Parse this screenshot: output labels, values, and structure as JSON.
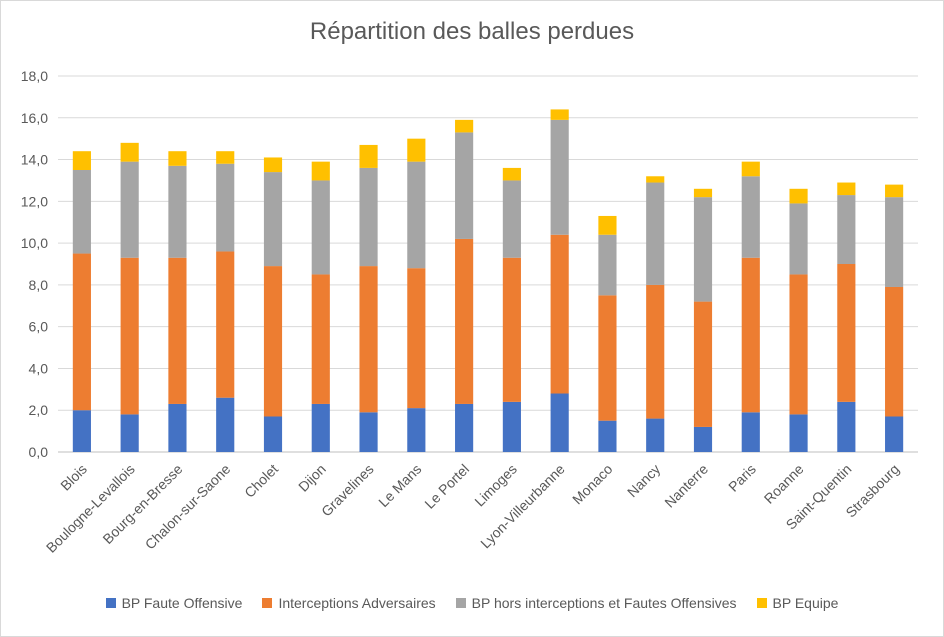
{
  "chart_data": {
    "type": "bar",
    "stacked": true,
    "title": "Répartition des balles perdues",
    "categories": [
      "Blois",
      "Boulogne-Levallois",
      "Bourg-en-Bresse",
      "Chalon-sur-Saone",
      "Cholet",
      "Dijon",
      "Gravelines",
      "Le Mans",
      "Le Portel",
      "Limoges",
      "Lyon-Villeurbanne",
      "Monaco",
      "Nancy",
      "Nanterre",
      "Paris",
      "Roanne",
      "Saint-Quentin",
      "Strasbourg"
    ],
    "series": [
      {
        "name": "BP Faute Offensive",
        "color": "#4472c4",
        "values": [
          2.0,
          1.8,
          2.3,
          2.6,
          1.7,
          2.3,
          1.9,
          2.1,
          2.3,
          2.4,
          2.8,
          1.5,
          1.6,
          1.2,
          1.9,
          1.8,
          2.4,
          1.7
        ]
      },
      {
        "name": "Interceptions Adversaires",
        "color": "#ed7d31",
        "values": [
          7.5,
          7.5,
          7.0,
          7.0,
          7.2,
          6.2,
          7.0,
          6.7,
          7.9,
          6.9,
          7.6,
          6.0,
          6.4,
          6.0,
          7.4,
          6.7,
          6.6,
          6.2
        ]
      },
      {
        "name": "BP hors interceptions et Fautes Offensives",
        "color": "#a5a5a5",
        "values": [
          4.0,
          4.6,
          4.4,
          4.2,
          4.5,
          4.5,
          4.7,
          5.1,
          5.1,
          3.7,
          5.5,
          2.9,
          4.9,
          5.0,
          3.9,
          3.4,
          3.3,
          4.3
        ]
      },
      {
        "name": "BP Equipe",
        "color": "#ffc000",
        "values": [
          0.9,
          0.9,
          0.7,
          0.6,
          0.7,
          0.9,
          1.1,
          1.1,
          0.6,
          0.6,
          0.5,
          0.9,
          0.3,
          0.4,
          0.7,
          0.7,
          0.6,
          0.6
        ]
      }
    ],
    "ylim": [
      0,
      18
    ],
    "yticks": [
      "0,0",
      "2,0",
      "4,0",
      "6,0",
      "8,0",
      "10,0",
      "12,0",
      "14,0",
      "16,0",
      "18,0"
    ],
    "grid": true,
    "legend": "bottom"
  }
}
